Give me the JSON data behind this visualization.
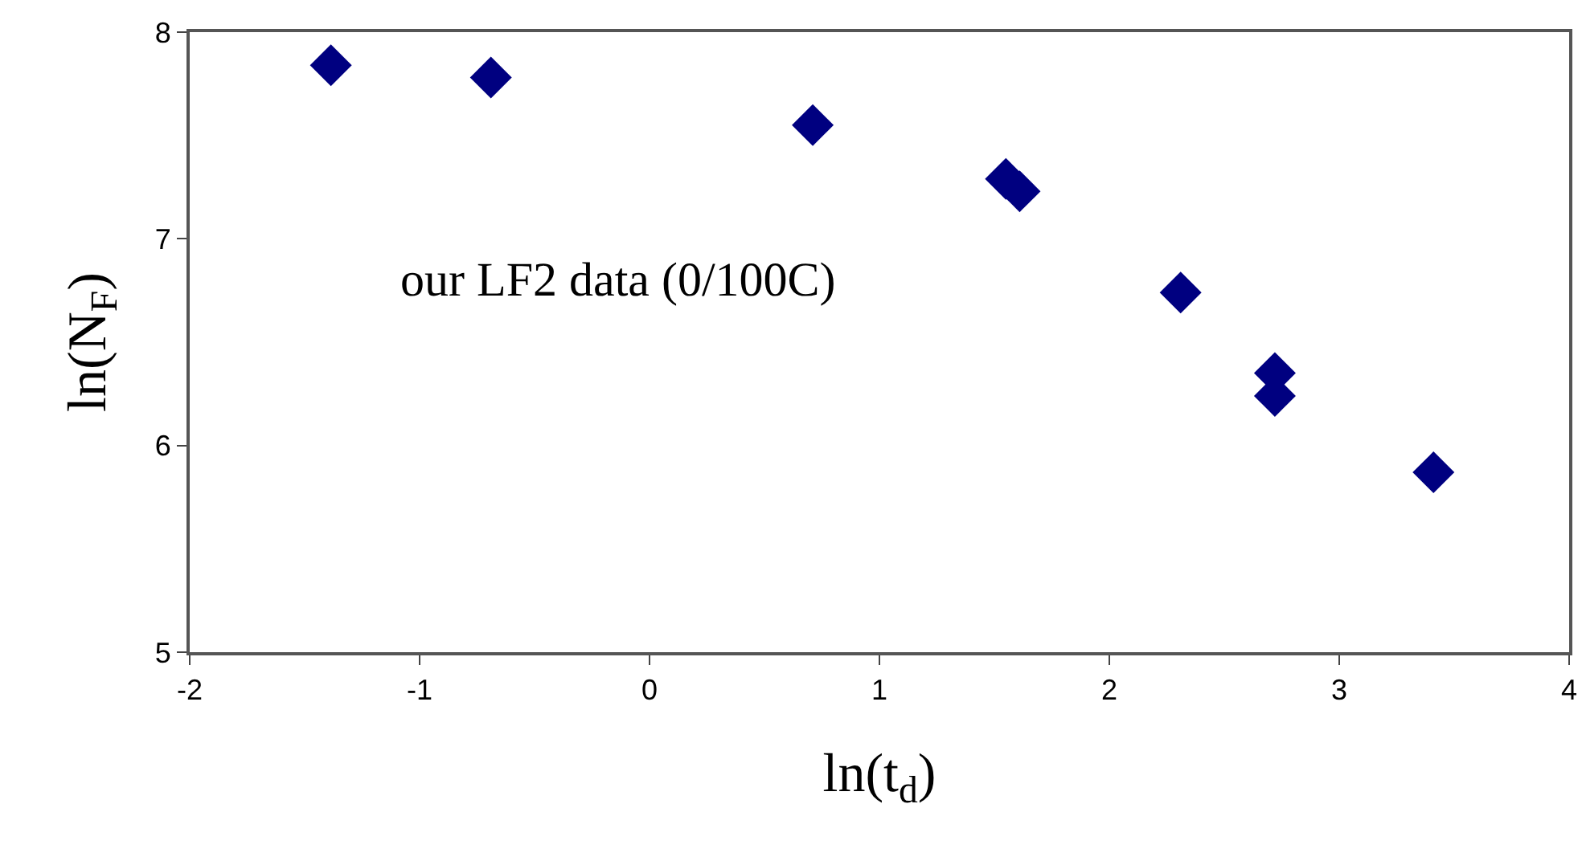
{
  "chart_data": {
    "type": "scatter",
    "xlabel": "ln(t$_{d}$)",
    "ylabel": "ln(N$_{F}$)",
    "annotations": [
      "our LF2 data (0/100C)"
    ],
    "x": [
      -1.386,
      -0.69,
      0.71,
      1.55,
      1.61,
      2.31,
      2.72,
      2.72,
      3.41
    ],
    "series": [
      {
        "color": "#000080",
        "values": [
          7.84,
          7.78,
          7.55,
          7.29,
          7.23,
          6.74,
          6.35,
          6.24,
          5.87
        ]
      }
    ],
    "marker": "diamond",
    "xlim": [
      -2,
      4
    ],
    "ylim": [
      5,
      8
    ],
    "xticks": [
      -2,
      -1,
      0,
      1,
      2,
      3,
      4
    ],
    "yticks": [
      5,
      6,
      7,
      8
    ]
  }
}
